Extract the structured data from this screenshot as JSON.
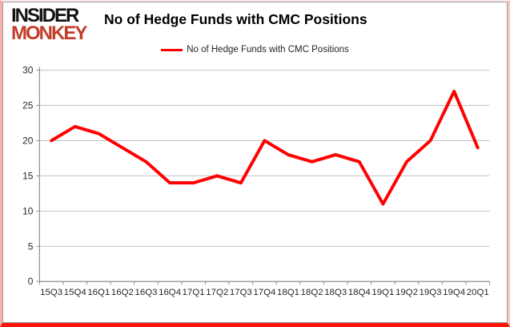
{
  "logo": {
    "line1": "INSIDER",
    "line2": "MONKEY",
    "line1_color": "#121212",
    "line2_color": "#c43c28"
  },
  "title": "No of Hedge Funds with CMC Positions",
  "legend": {
    "label": "No of Hedge Funds with CMC Positions",
    "swatch_color": "#ff0000"
  },
  "colors": {
    "line": "#ff0000",
    "grid": "#c3c3c3",
    "axis": "#8e8e8e",
    "tick_text": "#262626",
    "outer_border_bottom": "#f81505"
  },
  "chart_data": {
    "type": "line",
    "title": "No of Hedge Funds with CMC Positions",
    "series_name": "No of Hedge Funds with CMC Positions",
    "categories": [
      "15Q3",
      "15Q4",
      "16Q1",
      "16Q2",
      "16Q3",
      "16Q4",
      "17Q1",
      "17Q2",
      "17Q3",
      "17Q4",
      "18Q1",
      "18Q2",
      "18Q3",
      "18Q4",
      "19Q1",
      "19Q2",
      "19Q3",
      "19Q4",
      "20Q1"
    ],
    "values": [
      20,
      22,
      21,
      19,
      17,
      14,
      14,
      15,
      14,
      20,
      18,
      17,
      18,
      17,
      11,
      17,
      20,
      27,
      19
    ],
    "xlabel": "",
    "ylabel": "",
    "ylim": [
      0,
      30
    ],
    "yticks": [
      0,
      5,
      10,
      15,
      20,
      25,
      30
    ],
    "grid": true,
    "legend_position": "top-center",
    "line_color": "#ff0000",
    "line_width": 4,
    "markers": false
  }
}
